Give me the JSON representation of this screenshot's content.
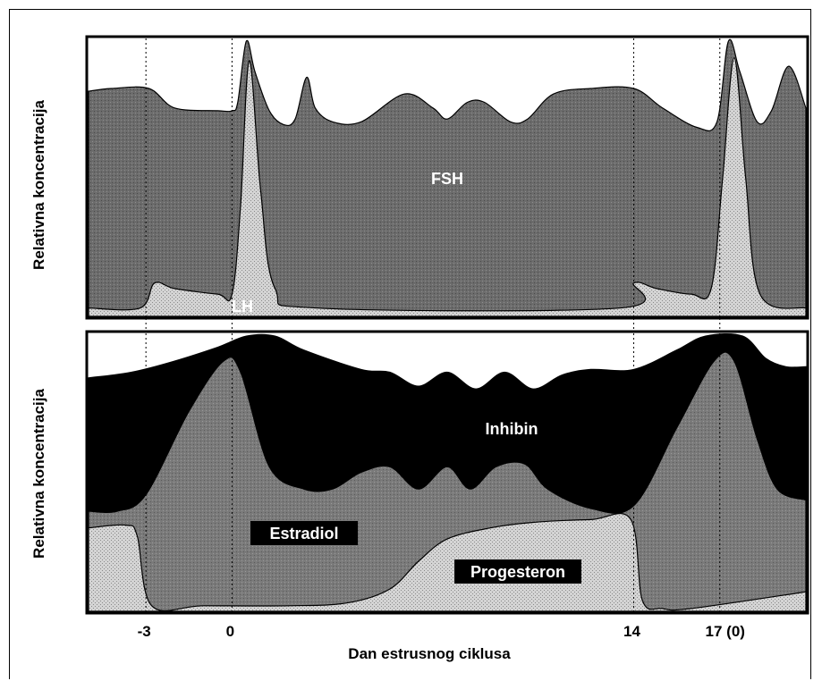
{
  "chart_data": [
    {
      "type": "area",
      "ylabel": "Relativna koncentracija",
      "xlim": [
        -5,
        20
      ],
      "series": [
        {
          "name": "FSH",
          "color": "#6a6a6a",
          "points": [
            [
              -5,
              0.81
            ],
            [
              -4.2,
              0.82
            ],
            [
              -2.9,
              0.82
            ],
            [
              -2,
              0.75
            ],
            [
              -0.5,
              0.74
            ],
            [
              0,
              0.74
            ],
            [
              0.2,
              0.77
            ],
            [
              0.5,
              0.99
            ],
            [
              0.8,
              0.88
            ],
            [
              1.3,
              0.74
            ],
            [
              1.8,
              0.69
            ],
            [
              2.2,
              0.71
            ],
            [
              2.6,
              0.86
            ],
            [
              2.9,
              0.75
            ],
            [
              3.5,
              0.7
            ],
            [
              4.5,
              0.7
            ],
            [
              6,
              0.8
            ],
            [
              7,
              0.75
            ],
            [
              7.5,
              0.71
            ],
            [
              8.2,
              0.77
            ],
            [
              8.8,
              0.77
            ],
            [
              9.7,
              0.7
            ],
            [
              10.3,
              0.71
            ],
            [
              11.2,
              0.8
            ],
            [
              12.5,
              0.82
            ],
            [
              14,
              0.82
            ],
            [
              15,
              0.75
            ],
            [
              16.2,
              0.68
            ],
            [
              16.9,
              0.7
            ],
            [
              17.3,
              0.99
            ],
            [
              17.7,
              0.88
            ],
            [
              18.3,
              0.7
            ],
            [
              18.8,
              0.74
            ],
            [
              19.4,
              0.9
            ],
            [
              20,
              0.75
            ]
          ]
        },
        {
          "name": "LH",
          "color": "#c4c4c4",
          "points": [
            [
              -5,
              0.03
            ],
            [
              -3.2,
              0.03
            ],
            [
              -2.7,
              0.12
            ],
            [
              -2,
              0.1
            ],
            [
              -0.5,
              0.08
            ],
            [
              0,
              0.08
            ],
            [
              0.3,
              0.4
            ],
            [
              0.6,
              0.92
            ],
            [
              1.0,
              0.45
            ],
            [
              1.5,
              0.1
            ],
            [
              3,
              0.03
            ],
            [
              13.5,
              0.03
            ],
            [
              14,
              0.12
            ],
            [
              14.8,
              0.1
            ],
            [
              16,
              0.08
            ],
            [
              16.7,
              0.1
            ],
            [
              17.1,
              0.5
            ],
            [
              17.5,
              0.93
            ],
            [
              17.9,
              0.5
            ],
            [
              18.4,
              0.08
            ],
            [
              20,
              0.03
            ]
          ]
        }
      ],
      "x_markers": [
        -3,
        0,
        14,
        17
      ]
    },
    {
      "type": "area",
      "ylabel": "Relativna koncentracija",
      "xlabel": "Dan estrusnog ciklusa",
      "xlim": [
        -5,
        20
      ],
      "x_ticks": [
        {
          "x": -3,
          "label": "-3"
        },
        {
          "x": 0,
          "label": "0"
        },
        {
          "x": 14,
          "label": "14"
        },
        {
          "x": 17,
          "label": "17 (0)"
        }
      ],
      "series": [
        {
          "name": "Inhibin",
          "color": "#000000",
          "points": [
            [
              -5,
              0.84
            ],
            [
              -3.5,
              0.86
            ],
            [
              -2,
              0.9
            ],
            [
              -0.5,
              0.95
            ],
            [
              0.5,
              0.99
            ],
            [
              1.5,
              0.99
            ],
            [
              2.5,
              0.94
            ],
            [
              4.5,
              0.87
            ],
            [
              5.5,
              0.86
            ],
            [
              6.5,
              0.81
            ],
            [
              7.5,
              0.86
            ],
            [
              8.5,
              0.8
            ],
            [
              9.5,
              0.86
            ],
            [
              10.5,
              0.8
            ],
            [
              11.5,
              0.85
            ],
            [
              12.5,
              0.87
            ],
            [
              14,
              0.87
            ],
            [
              15.5,
              0.94
            ],
            [
              16.5,
              0.99
            ],
            [
              17.8,
              0.99
            ],
            [
              18.6,
              0.91
            ],
            [
              19.3,
              0.88
            ],
            [
              20,
              0.88
            ]
          ]
        },
        {
          "name": "Estradiol",
          "color": "#777777",
          "points": [
            [
              -5,
              0.36
            ],
            [
              -4,
              0.36
            ],
            [
              -3,
              0.42
            ],
            [
              -1.5,
              0.72
            ],
            [
              -0.3,
              0.9
            ],
            [
              0.3,
              0.86
            ],
            [
              1.3,
              0.52
            ],
            [
              2.5,
              0.44
            ],
            [
              3.5,
              0.44
            ],
            [
              4.5,
              0.5
            ],
            [
              5.5,
              0.52
            ],
            [
              6.5,
              0.44
            ],
            [
              7.5,
              0.52
            ],
            [
              8.3,
              0.44
            ],
            [
              9.2,
              0.52
            ],
            [
              10.2,
              0.53
            ],
            [
              11,
              0.44
            ],
            [
              12.5,
              0.37
            ],
            [
              14,
              0.38
            ],
            [
              15.5,
              0.66
            ],
            [
              16.8,
              0.9
            ],
            [
              17.5,
              0.9
            ],
            [
              18.3,
              0.62
            ],
            [
              19,
              0.44
            ],
            [
              20,
              0.4
            ]
          ]
        },
        {
          "name": "Progesteron",
          "color": "#c4c4c4",
          "points": [
            [
              -5,
              0.3
            ],
            [
              -3.7,
              0.31
            ],
            [
              -3.3,
              0.27
            ],
            [
              -2.8,
              0.02
            ],
            [
              -1,
              0.02
            ],
            [
              2,
              0.02
            ],
            [
              4,
              0.03
            ],
            [
              5.5,
              0.08
            ],
            [
              6.5,
              0.18
            ],
            [
              7.5,
              0.26
            ],
            [
              9,
              0.3
            ],
            [
              10.5,
              0.32
            ],
            [
              12.5,
              0.33
            ],
            [
              13.9,
              0.33
            ],
            [
              14.3,
              0.04
            ],
            [
              15,
              0.01
            ],
            [
              16,
              0.01
            ],
            [
              20,
              0.07
            ]
          ]
        }
      ],
      "x_markers": [
        -3,
        0,
        14,
        17
      ]
    }
  ]
}
